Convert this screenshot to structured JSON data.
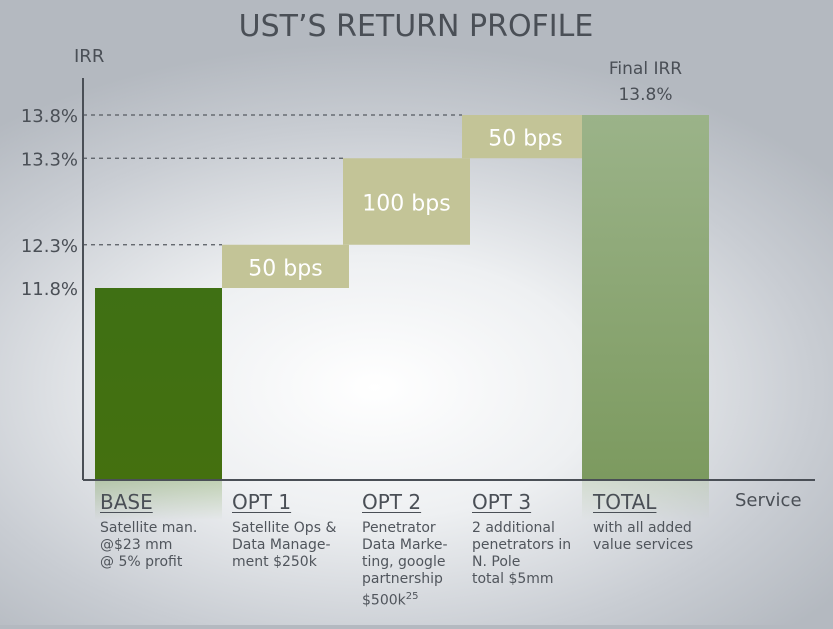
{
  "chart_data": {
    "type": "bar",
    "subtype": "waterfall",
    "title": "UST’S RETURN PROFILE",
    "ylabel": "IRR",
    "xlabel": "Service",
    "y_ticks": [
      "11.8%",
      "12.3%",
      "13.3%",
      "13.8%"
    ],
    "ylim": [
      8.2,
      14.8
    ],
    "grid": false,
    "categories": [
      "BASE",
      "OPT 1",
      "OPT 2",
      "OPT 3",
      "TOTAL"
    ],
    "bars": [
      {
        "category": "BASE",
        "start": 8.2,
        "end": 11.8,
        "label": "",
        "color": "#4e7c22"
      },
      {
        "category": "OPT 1",
        "start": 11.8,
        "end": 12.3,
        "label": "50 bps",
        "color": "#c3c497"
      },
      {
        "category": "OPT 2",
        "start": 12.3,
        "end": 13.3,
        "label": "100 bps",
        "color": "#c3c497"
      },
      {
        "category": "OPT 3",
        "start": 13.3,
        "end": 13.8,
        "label": "50 bps",
        "color": "#c3c497"
      },
      {
        "category": "TOTAL",
        "start": 8.2,
        "end": 13.8,
        "label": "",
        "color": "#95ad7f"
      }
    ],
    "guide_levels": [
      13.8,
      13.3,
      12.3
    ],
    "total_annotation": {
      "line1": "Final IRR",
      "line2": "13.8%"
    },
    "descriptions": [
      "Satellite man.\n@$23 mm\n@ 5% profit",
      "Satellite Ops &\nData Manage-\nment $250k",
      "Penetrator\nData Marke-\nting, google\npartnership\n$500k",
      "2 additional\npenetrators in\nN. Pole\ntotal $5mm",
      "with all added\nvalue services"
    ],
    "footnote_marker": "25"
  }
}
